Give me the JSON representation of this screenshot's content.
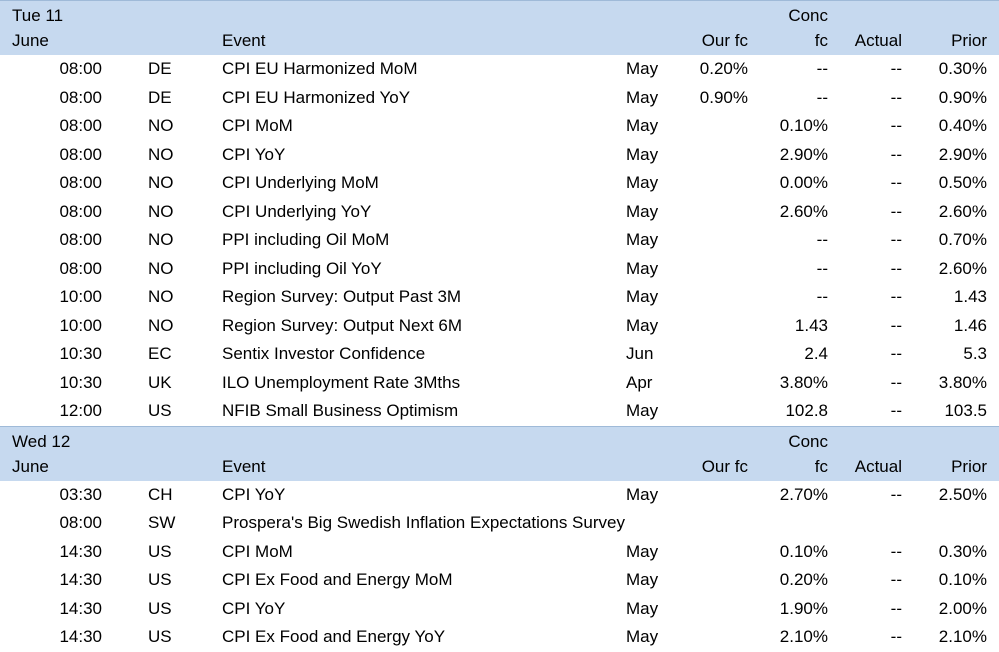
{
  "sections": [
    {
      "date": "Tue 11",
      "month": "June",
      "headers": {
        "event": "Event",
        "our_fc": "Our fc",
        "conc_line1": "Conc",
        "conc_line2": "fc",
        "actual": "Actual",
        "prior": "Prior"
      },
      "rows": [
        {
          "time": "08:00",
          "country": "DE",
          "event": "CPI EU Harmonized MoM",
          "period": "May",
          "our_fc": "0.20%",
          "conc": "--",
          "actual": "--",
          "prior": "0.30%"
        },
        {
          "time": "08:00",
          "country": "DE",
          "event": "CPI EU Harmonized YoY",
          "period": "May",
          "our_fc": "0.90%",
          "conc": "--",
          "actual": "--",
          "prior": "0.90%"
        },
        {
          "time": "08:00",
          "country": "NO",
          "event": "CPI MoM",
          "period": "May",
          "our_fc": "",
          "conc": "0.10%",
          "actual": "--",
          "prior": "0.40%"
        },
        {
          "time": "08:00",
          "country": "NO",
          "event": "CPI YoY",
          "period": "May",
          "our_fc": "",
          "conc": "2.90%",
          "actual": "--",
          "prior": "2.90%"
        },
        {
          "time": "08:00",
          "country": "NO",
          "event": "CPI Underlying MoM",
          "period": "May",
          "our_fc": "",
          "conc": "0.00%",
          "actual": "--",
          "prior": "0.50%"
        },
        {
          "time": "08:00",
          "country": "NO",
          "event": "CPI Underlying YoY",
          "period": "May",
          "our_fc": "",
          "conc": "2.60%",
          "actual": "--",
          "prior": "2.60%"
        },
        {
          "time": "08:00",
          "country": "NO",
          "event": "PPI including Oil MoM",
          "period": "May",
          "our_fc": "",
          "conc": "--",
          "actual": "--",
          "prior": "0.70%"
        },
        {
          "time": "08:00",
          "country": "NO",
          "event": "PPI including Oil YoY",
          "period": "May",
          "our_fc": "",
          "conc": "--",
          "actual": "--",
          "prior": "2.60%"
        },
        {
          "time": "10:00",
          "country": "NO",
          "event": "Region Survey: Output Past 3M",
          "period": "May",
          "our_fc": "",
          "conc": "--",
          "actual": "--",
          "prior": "1.43"
        },
        {
          "time": "10:00",
          "country": "NO",
          "event": "Region Survey: Output Next 6M",
          "period": "May",
          "our_fc": "",
          "conc": "1.43",
          "actual": "--",
          "prior": "1.46"
        },
        {
          "time": "10:30",
          "country": "EC",
          "event": "Sentix Investor Confidence",
          "period": "Jun",
          "our_fc": "",
          "conc": "2.4",
          "actual": "--",
          "prior": "5.3"
        },
        {
          "time": "10:30",
          "country": "UK",
          "event": "ILO Unemployment Rate 3Mths",
          "period": "Apr",
          "our_fc": "",
          "conc": "3.80%",
          "actual": "--",
          "prior": "3.80%"
        },
        {
          "time": "12:00",
          "country": "US",
          "event": "NFIB Small Business Optimism",
          "period": "May",
          "our_fc": "",
          "conc": "102.8",
          "actual": "--",
          "prior": "103.5"
        }
      ]
    },
    {
      "date": "Wed 12",
      "month": "June",
      "headers": {
        "event": "Event",
        "our_fc": "Our fc",
        "conc_line1": "Conc",
        "conc_line2": "fc",
        "actual": "Actual",
        "prior": "Prior"
      },
      "rows": [
        {
          "time": "03:30",
          "country": "CH",
          "event": "CPI YoY",
          "period": "May",
          "our_fc": "",
          "conc": "2.70%",
          "actual": "--",
          "prior": "2.50%"
        },
        {
          "time": "08:00",
          "country": "SW",
          "event": "Prospera's Big Swedish Inflation Expectations Survey",
          "period": "",
          "our_fc": "",
          "conc": "",
          "actual": "",
          "prior": ""
        },
        {
          "time": "14:30",
          "country": "US",
          "event": "CPI MoM",
          "period": "May",
          "our_fc": "",
          "conc": "0.10%",
          "actual": "--",
          "prior": "0.30%"
        },
        {
          "time": "14:30",
          "country": "US",
          "event": "CPI Ex Food and Energy MoM",
          "period": "May",
          "our_fc": "",
          "conc": "0.20%",
          "actual": "--",
          "prior": "0.10%"
        },
        {
          "time": "14:30",
          "country": "US",
          "event": "CPI YoY",
          "period": "May",
          "our_fc": "",
          "conc": "1.90%",
          "actual": "--",
          "prior": "2.00%"
        },
        {
          "time": "14:30",
          "country": "US",
          "event": "CPI Ex Food and Energy YoY",
          "period": "May",
          "our_fc": "",
          "conc": "2.10%",
          "actual": "--",
          "prior": "2.10%"
        }
      ]
    }
  ],
  "colors": {
    "header_bg": "#c6d9ef"
  }
}
